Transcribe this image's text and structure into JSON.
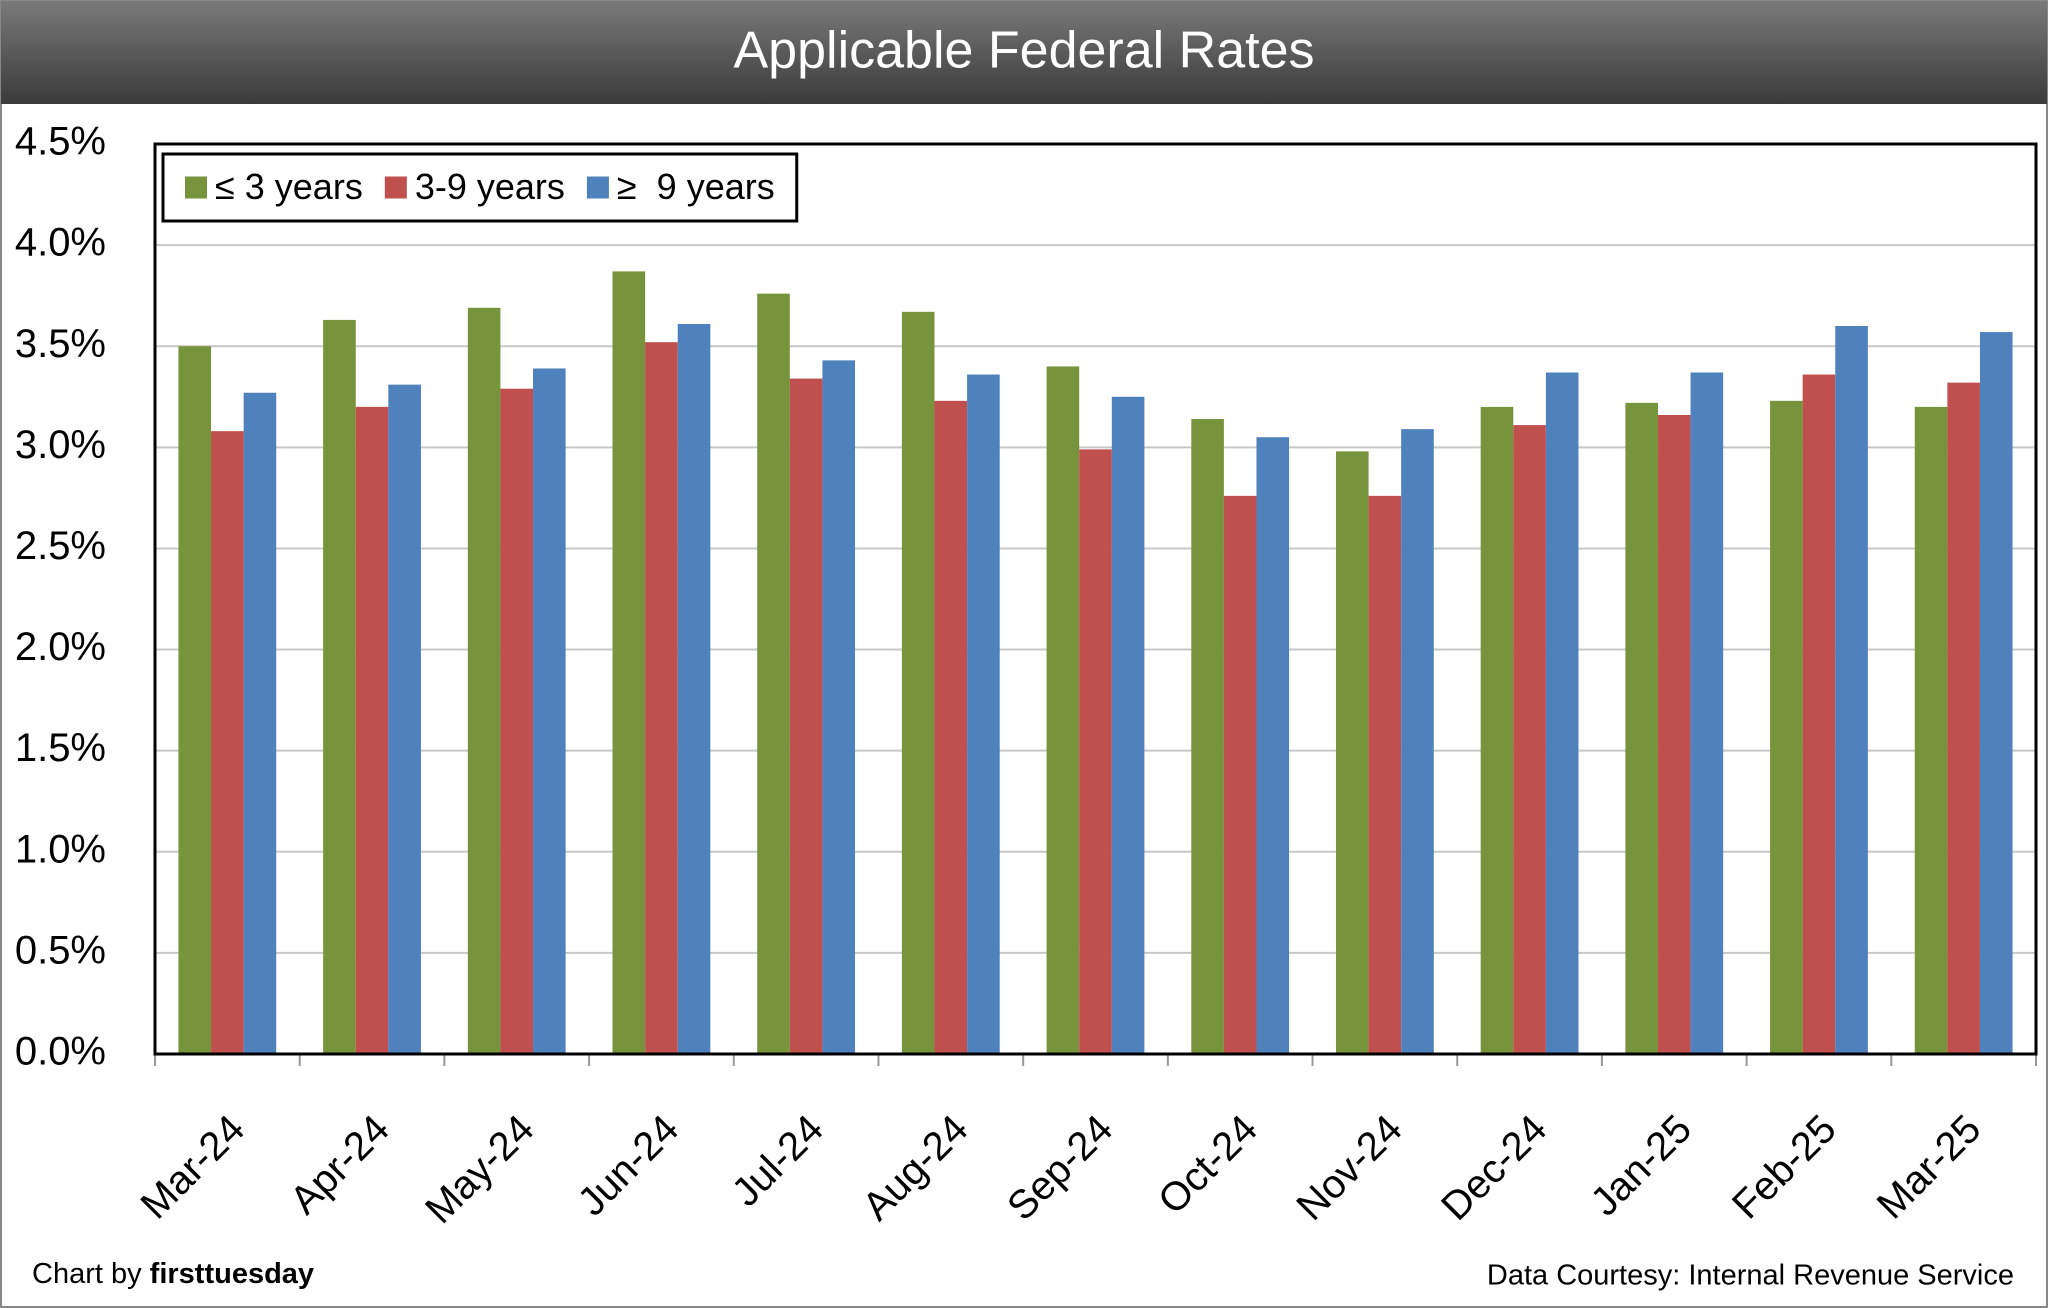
{
  "chart_data": {
    "type": "bar",
    "title": "Applicable Federal Rates",
    "categories": [
      "Mar-24",
      "Apr-24",
      "May-24",
      "Jun-24",
      "Jul-24",
      "Aug-24",
      "Sep-24",
      "Oct-24",
      "Nov-24",
      "Dec-24",
      "Jan-25",
      "Feb-25",
      "Mar-25"
    ],
    "series": [
      {
        "name": "≤ 3 years",
        "color": "#77933c",
        "values": [
          3.5,
          3.63,
          3.69,
          3.87,
          3.76,
          3.67,
          3.4,
          3.14,
          2.98,
          3.2,
          3.22,
          3.23,
          3.2
        ]
      },
      {
        "name": "3-9 years",
        "color": "#c0504d",
        "values": [
          3.08,
          3.2,
          3.29,
          3.52,
          3.34,
          3.23,
          2.99,
          2.76,
          2.76,
          3.11,
          3.16,
          3.36,
          3.32
        ]
      },
      {
        "name": "≥  9 years",
        "color": "#4f81bd",
        "values": [
          3.27,
          3.31,
          3.39,
          3.61,
          3.43,
          3.36,
          3.25,
          3.05,
          3.09,
          3.37,
          3.37,
          3.6,
          3.57
        ]
      }
    ],
    "ylim": [
      0,
      4.5
    ],
    "yticks": [
      {
        "value": 0,
        "label": "0.0%"
      },
      {
        "value": 0.5,
        "label": "0.5%"
      },
      {
        "value": 1,
        "label": "1.0%"
      },
      {
        "value": 1.5,
        "label": "1.5%"
      },
      {
        "value": 2,
        "label": "2.0%"
      },
      {
        "value": 2.5,
        "label": "2.5%"
      },
      {
        "value": 3,
        "label": "3.0%"
      },
      {
        "value": 3.5,
        "label": "3.5%"
      },
      {
        "value": 4,
        "label": "4.0%"
      },
      {
        "value": 4.5,
        "label": "4.5%"
      }
    ],
    "grid": true,
    "legend": "top-left",
    "annotations": [
      "Chart by",
      "firsttuesday",
      "Data Courtesy: Internal Revenue Service"
    ]
  }
}
